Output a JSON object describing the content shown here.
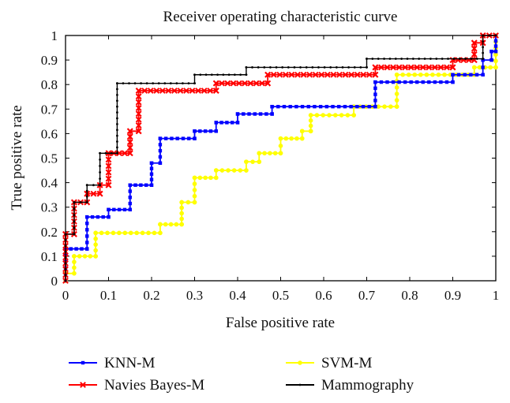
{
  "chart_data": {
    "type": "line",
    "title": "Receiver operating characteristic curve",
    "xlabel": "False positive rate",
    "ylabel": "True positive rate",
    "xlim": [
      0,
      1
    ],
    "ylim": [
      0,
      1
    ],
    "xticks": [
      "0",
      "0.1",
      "0.2",
      "0.3",
      "0.4",
      "0.5",
      "0.6",
      "0.7",
      "0.8",
      "0.9",
      "1"
    ],
    "yticks": [
      "0",
      "0.1",
      "0.2",
      "0.3",
      "0.4",
      "0.5",
      "0.6",
      "0.7",
      "0.8",
      "0.9",
      "1"
    ],
    "grid": false,
    "legend_position": "bottom",
    "series": [
      {
        "name": "KNN-M",
        "color": "#0000ff",
        "marker": "square",
        "points": [
          [
            0,
            0
          ],
          [
            0,
            0.13
          ],
          [
            0.05,
            0.13
          ],
          [
            0.05,
            0.26
          ],
          [
            0.1,
            0.26
          ],
          [
            0.1,
            0.29
          ],
          [
            0.15,
            0.29
          ],
          [
            0.15,
            0.39
          ],
          [
            0.2,
            0.39
          ],
          [
            0.2,
            0.48
          ],
          [
            0.22,
            0.48
          ],
          [
            0.22,
            0.58
          ],
          [
            0.3,
            0.58
          ],
          [
            0.3,
            0.61
          ],
          [
            0.35,
            0.61
          ],
          [
            0.35,
            0.645
          ],
          [
            0.4,
            0.645
          ],
          [
            0.4,
            0.68
          ],
          [
            0.48,
            0.68
          ],
          [
            0.48,
            0.71
          ],
          [
            0.72,
            0.71
          ],
          [
            0.72,
            0.81
          ],
          [
            0.9,
            0.81
          ],
          [
            0.9,
            0.84
          ],
          [
            0.97,
            0.84
          ],
          [
            0.97,
            0.9
          ],
          [
            0.99,
            0.9
          ],
          [
            0.99,
            0.935
          ],
          [
            1,
            0.935
          ],
          [
            1,
            1
          ]
        ]
      },
      {
        "name": "Navies Bayes-M",
        "color": "#ff0000",
        "marker": "x",
        "points": [
          [
            0,
            0
          ],
          [
            0,
            0.19
          ],
          [
            0.02,
            0.19
          ],
          [
            0.02,
            0.32
          ],
          [
            0.05,
            0.32
          ],
          [
            0.05,
            0.355
          ],
          [
            0.08,
            0.355
          ],
          [
            0.08,
            0.39
          ],
          [
            0.1,
            0.39
          ],
          [
            0.1,
            0.52
          ],
          [
            0.15,
            0.52
          ],
          [
            0.15,
            0.61
          ],
          [
            0.17,
            0.61
          ],
          [
            0.17,
            0.775
          ],
          [
            0.35,
            0.775
          ],
          [
            0.35,
            0.805
          ],
          [
            0.47,
            0.805
          ],
          [
            0.47,
            0.84
          ],
          [
            0.72,
            0.84
          ],
          [
            0.72,
            0.87
          ],
          [
            0.9,
            0.87
          ],
          [
            0.9,
            0.9
          ],
          [
            0.95,
            0.9
          ],
          [
            0.95,
            0.97
          ],
          [
            0.97,
            0.97
          ],
          [
            0.97,
            1
          ],
          [
            1,
            1
          ]
        ]
      },
      {
        "name": "SVM-M",
        "color": "#ffff00",
        "marker": "circle",
        "points": [
          [
            0,
            0
          ],
          [
            0,
            0.03
          ],
          [
            0.02,
            0.03
          ],
          [
            0.02,
            0.1
          ],
          [
            0.07,
            0.1
          ],
          [
            0.07,
            0.195
          ],
          [
            0.22,
            0.195
          ],
          [
            0.22,
            0.23
          ],
          [
            0.27,
            0.23
          ],
          [
            0.27,
            0.32
          ],
          [
            0.3,
            0.32
          ],
          [
            0.3,
            0.42
          ],
          [
            0.35,
            0.42
          ],
          [
            0.35,
            0.45
          ],
          [
            0.42,
            0.45
          ],
          [
            0.42,
            0.485
          ],
          [
            0.45,
            0.485
          ],
          [
            0.45,
            0.52
          ],
          [
            0.5,
            0.52
          ],
          [
            0.5,
            0.58
          ],
          [
            0.55,
            0.58
          ],
          [
            0.55,
            0.61
          ],
          [
            0.57,
            0.61
          ],
          [
            0.57,
            0.675
          ],
          [
            0.67,
            0.675
          ],
          [
            0.67,
            0.71
          ],
          [
            0.77,
            0.71
          ],
          [
            0.77,
            0.84
          ],
          [
            0.95,
            0.84
          ],
          [
            0.95,
            0.87
          ],
          [
            1,
            0.87
          ],
          [
            1,
            1
          ]
        ]
      },
      {
        "name": "Mammography",
        "color": "#000000",
        "marker": "dot",
        "points": [
          [
            0,
            0
          ],
          [
            0,
            0.19
          ],
          [
            0.02,
            0.19
          ],
          [
            0.02,
            0.32
          ],
          [
            0.05,
            0.32
          ],
          [
            0.05,
            0.39
          ],
          [
            0.08,
            0.39
          ],
          [
            0.08,
            0.52
          ],
          [
            0.12,
            0.52
          ],
          [
            0.12,
            0.805
          ],
          [
            0.3,
            0.805
          ],
          [
            0.3,
            0.84
          ],
          [
            0.42,
            0.84
          ],
          [
            0.42,
            0.87
          ],
          [
            0.7,
            0.87
          ],
          [
            0.7,
            0.905
          ],
          [
            0.97,
            0.905
          ],
          [
            0.97,
            1
          ],
          [
            1,
            1
          ]
        ]
      }
    ]
  }
}
